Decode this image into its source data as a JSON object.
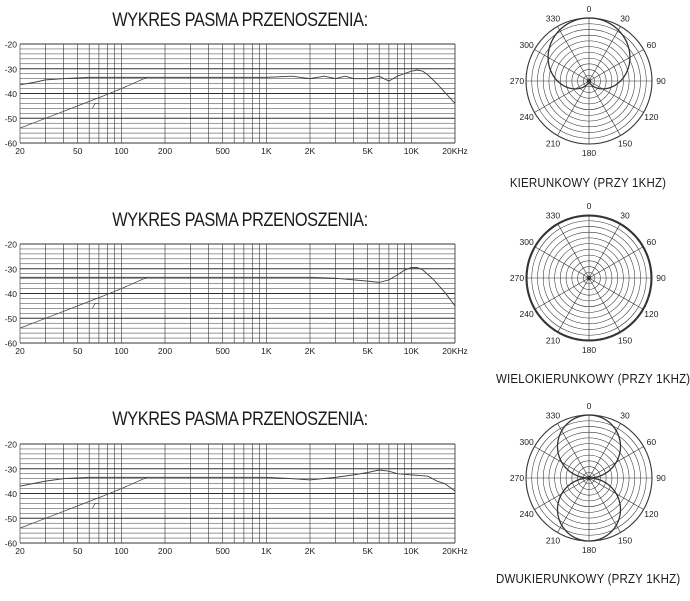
{
  "chart_data": [
    {
      "type": "line",
      "title": "WYKRES PASMA PRZENOSZENIA:",
      "xlabel": "",
      "ylabel": "",
      "x_scale": "log",
      "xlim": [
        20,
        20000
      ],
      "ylim": [
        -60,
        -20
      ],
      "grid": true,
      "x_tick_labels": [
        "20",
        "50",
        "100",
        "200",
        "500",
        "1K",
        "2K",
        "5K",
        "10K",
        "20KHz"
      ],
      "x_tick_values": [
        20,
        50,
        100,
        200,
        500,
        1000,
        2000,
        5000,
        10000,
        20000
      ],
      "y_tick_labels": [
        "-20",
        "-30",
        "-40",
        "-50",
        "-60"
      ],
      "y_tick_values": [
        -20,
        -30,
        -40,
        -50,
        -60
      ],
      "series": [
        {
          "x": [
            20,
            25,
            30,
            40,
            60,
            100,
            150,
            300,
            600,
            1000,
            1500,
            2000,
            2500,
            3000,
            3500,
            4000,
            5000,
            6000,
            7000,
            8000,
            10000,
            11000,
            12000,
            13000,
            15000,
            17000,
            20000
          ],
          "y": [
            -36.5,
            -35.5,
            -34.5,
            -34,
            -33.5,
            -33.5,
            -33.5,
            -33.5,
            -33.5,
            -33.5,
            -33,
            -34,
            -33,
            -34,
            -33,
            -34,
            -34,
            -33,
            -35,
            -33,
            -31,
            -30.5,
            -31,
            -32.5,
            -36,
            -39.5,
            -44
          ]
        },
        {
          "x": [
            20,
            30,
            50,
            75,
            100,
            150
          ],
          "y": [
            -54,
            -50,
            -45,
            -41,
            -38,
            -33.5
          ]
        }
      ],
      "annotations": [
        {
          "x": [
            63,
            66,
            70
          ],
          "y": [
            -46,
            -44,
            -44
          ]
        }
      ]
    },
    {
      "type": "line",
      "title": "WYKRES PASMA PRZENOSZENIA:",
      "xlabel": "",
      "ylabel": "",
      "x_scale": "log",
      "xlim": [
        20,
        20000
      ],
      "ylim": [
        -60,
        -20
      ],
      "grid": true,
      "x_tick_labels": [
        "20",
        "50",
        "100",
        "200",
        "500",
        "1K",
        "2K",
        "5K",
        "10K",
        "20KHz"
      ],
      "x_tick_values": [
        20,
        50,
        100,
        200,
        500,
        1000,
        2000,
        5000,
        10000,
        20000
      ],
      "y_tick_labels": [
        "-20",
        "-30",
        "-40",
        "-50",
        "-60"
      ],
      "y_tick_values": [
        -20,
        -30,
        -40,
        -50,
        -60
      ],
      "series": [
        {
          "x": [
            20,
            50,
            150,
            500,
            1000,
            2000,
            3000,
            4000,
            5000,
            6000,
            7000,
            8000,
            9000,
            10000,
            11000,
            12000,
            14000,
            17000,
            20000
          ],
          "y": [
            -33.5,
            -33.5,
            -33.5,
            -33.5,
            -33.5,
            -33.5,
            -33.8,
            -34.5,
            -35,
            -35.5,
            -34.5,
            -32.5,
            -30.5,
            -29.5,
            -29.5,
            -30.5,
            -34,
            -39.5,
            -45
          ]
        },
        {
          "x": [
            20,
            30,
            50,
            75,
            100,
            150
          ],
          "y": [
            -54,
            -50,
            -45,
            -41,
            -38,
            -33.5
          ]
        }
      ],
      "annotations": [
        {
          "x": [
            63,
            66,
            70
          ],
          "y": [
            -46,
            -44,
            -44
          ]
        }
      ]
    },
    {
      "type": "line",
      "title": "WYKRES PASMA PRZENOSZENIA:",
      "xlabel": "",
      "ylabel": "",
      "x_scale": "log",
      "xlim": [
        20,
        20000
      ],
      "ylim": [
        -60,
        -20
      ],
      "grid": true,
      "x_tick_labels": [
        "20",
        "50",
        "100",
        "200",
        "500",
        "1K",
        "2K",
        "5K",
        "10K",
        "20KHz"
      ],
      "x_tick_values": [
        20,
        50,
        100,
        200,
        500,
        1000,
        2000,
        5000,
        10000,
        20000
      ],
      "y_tick_labels": [
        "-20",
        "-30",
        "-40",
        "-50",
        "-60"
      ],
      "y_tick_values": [
        -20,
        -30,
        -40,
        -50,
        -60
      ],
      "series": [
        {
          "x": [
            20,
            30,
            40,
            60,
            100,
            150,
            300,
            600,
            1000,
            1500,
            2000,
            3000,
            4000,
            5000,
            6000,
            7000,
            8000,
            10000,
            13000,
            15000,
            17000,
            20000
          ],
          "y": [
            -37,
            -35,
            -34,
            -33.5,
            -33.5,
            -33.5,
            -33.5,
            -33.5,
            -33.5,
            -34,
            -34.5,
            -33.5,
            -32.5,
            -31.5,
            -30.5,
            -31,
            -32,
            -32.5,
            -33,
            -35,
            -36,
            -39
          ]
        },
        {
          "x": [
            20,
            30,
            50,
            75,
            100,
            150
          ],
          "y": [
            -54,
            -50,
            -45,
            -41,
            -38,
            -33.5
          ]
        }
      ],
      "annotations": [
        {
          "x": [
            63,
            66,
            70
          ],
          "y": [
            -46,
            -44,
            -44
          ]
        }
      ]
    },
    {
      "type": "polar",
      "title": "KIERUNKOWY (PRZY 1KHZ)",
      "angle_labels": [
        "0",
        "30",
        "60",
        "90",
        "120",
        "150",
        "180",
        "210",
        "240",
        "270",
        "300",
        "330"
      ],
      "angle_values": [
        0,
        30,
        60,
        90,
        120,
        150,
        180,
        210,
        240,
        270,
        300,
        330
      ],
      "rings": 11,
      "pattern": "cardioid",
      "theta": [
        0,
        30,
        60,
        90,
        120,
        150,
        180,
        210,
        240,
        270,
        300,
        330,
        360
      ],
      "r": [
        1.0,
        0.933,
        0.75,
        0.5,
        0.25,
        0.067,
        0.0,
        0.067,
        0.25,
        0.5,
        0.75,
        0.933,
        1.0
      ]
    },
    {
      "type": "polar",
      "title": "WIELOKIERUNKOWY (PRZY 1KHZ)",
      "angle_labels": [
        "0",
        "30",
        "60",
        "90",
        "120",
        "150",
        "180",
        "210",
        "240",
        "270",
        "300",
        "330"
      ],
      "angle_values": [
        0,
        30,
        60,
        90,
        120,
        150,
        180,
        210,
        240,
        270,
        300,
        330
      ],
      "rings": 11,
      "pattern": "omnidirectional",
      "theta": [
        0,
        30,
        60,
        90,
        120,
        150,
        180,
        210,
        240,
        270,
        300,
        330,
        360
      ],
      "r": [
        1,
        1,
        1,
        1,
        1,
        1,
        1,
        1,
        1,
        1,
        1,
        1,
        1
      ]
    },
    {
      "type": "polar",
      "title": "DWUKIERUNKOWY (PRZY 1KHZ)",
      "angle_labels": [
        "0",
        "30",
        "60",
        "90",
        "120",
        "150",
        "180",
        "210",
        "240",
        "270",
        "300",
        "330"
      ],
      "angle_values": [
        0,
        30,
        60,
        90,
        120,
        150,
        180,
        210,
        240,
        270,
        300,
        330
      ],
      "rings": 11,
      "pattern": "figure-8",
      "theta": [
        0,
        30,
        60,
        90,
        120,
        150,
        180,
        210,
        240,
        270,
        300,
        330,
        360
      ],
      "r": [
        1.0,
        0.866,
        0.5,
        0.0,
        0.5,
        0.866,
        1.0,
        0.866,
        0.5,
        0.0,
        0.5,
        0.866,
        1.0
      ]
    }
  ],
  "colors": {
    "line": "#444444",
    "grid": "#333333",
    "text": "#1c1c1c"
  }
}
